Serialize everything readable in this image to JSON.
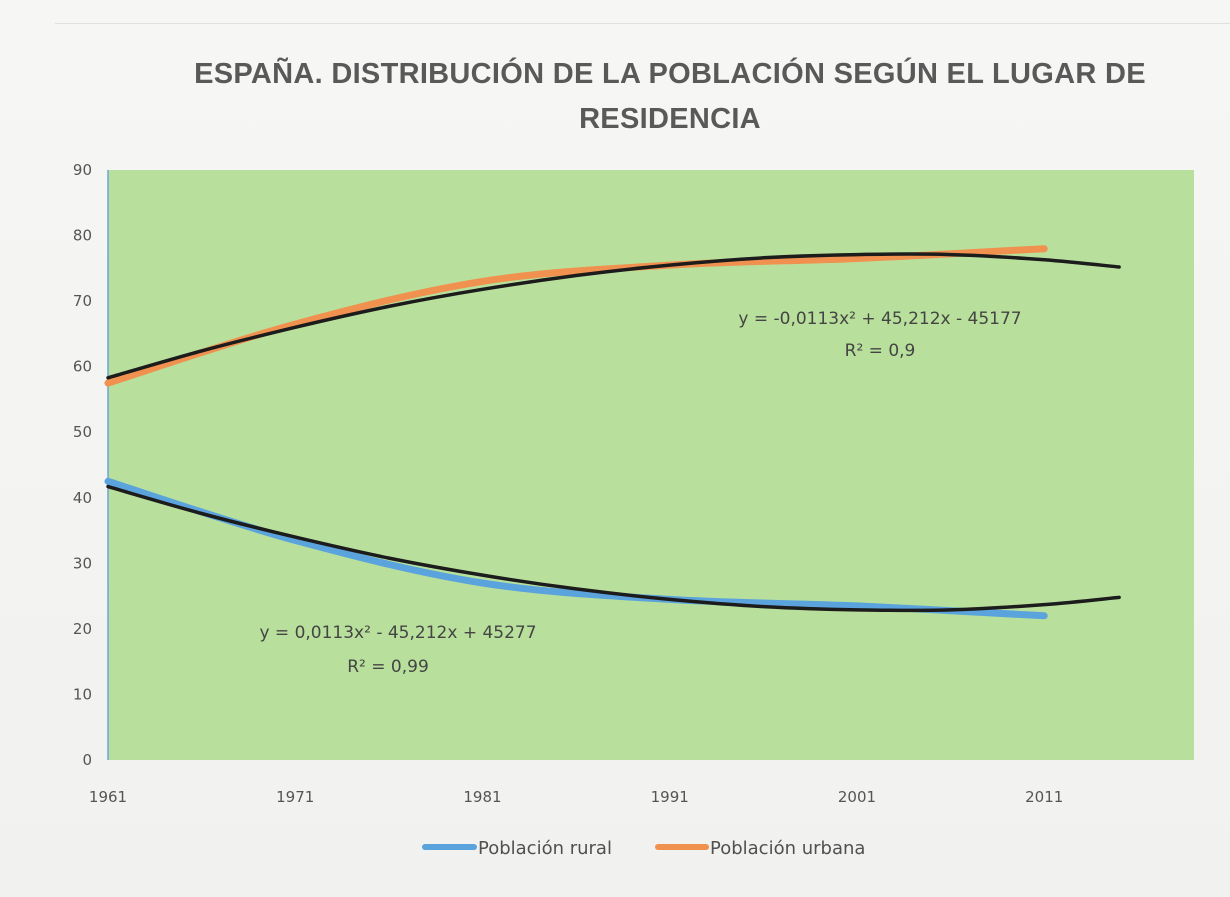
{
  "chart_data": {
    "type": "line",
    "title": "ESPAÑA. DISTRIBUCIÓN DE LA POBLACIÓN SEGÚN EL LUGAR DE RESIDENCIA",
    "x": [
      1961,
      1971,
      1981,
      1991,
      2001,
      2011
    ],
    "x_ticks": [
      "1961",
      "1971",
      "1981",
      "1991",
      "2001",
      "2011"
    ],
    "xlim": [
      1961,
      2019
    ],
    "ylim": [
      0,
      90
    ],
    "y_ticks": [
      "0",
      "10",
      "20",
      "30",
      "40",
      "50",
      "60",
      "70",
      "80",
      "90"
    ],
    "plot_background": "#b8e09c",
    "grid": false,
    "legend_position": "bottom",
    "series": [
      {
        "name": "Población rural",
        "color": "#5ba3dc",
        "values": [
          42.5,
          33.5,
          27,
          24.5,
          23.5,
          22
        ]
      },
      {
        "name": "Población urbana",
        "color": "#f0914f",
        "values": [
          57.5,
          66.5,
          73,
          75.5,
          76.5,
          78
        ]
      }
    ],
    "trendlines": [
      {
        "series": "Población urbana",
        "type": "polynomial",
        "order": 2,
        "color": "#1c1c1c",
        "x_end": 2015,
        "points": [
          [
            1961,
            58.3
          ],
          [
            1966,
            62.4
          ],
          [
            1971,
            66.0
          ],
          [
            1976,
            69.2
          ],
          [
            1981,
            71.8
          ],
          [
            1986,
            73.9
          ],
          [
            1991,
            75.5
          ],
          [
            1996,
            76.6
          ],
          [
            2001,
            77.1
          ],
          [
            2006,
            77.1
          ],
          [
            2011,
            76.3
          ],
          [
            2015,
            75.2
          ]
        ],
        "equation": "y = -0,0113x² + 45,212x - 45177",
        "r2": "R² = 0,9"
      },
      {
        "series": "Población rural",
        "type": "polynomial",
        "order": 2,
        "color": "#1c1c1c",
        "x_end": 2015,
        "points": [
          [
            1961,
            41.7
          ],
          [
            1966,
            37.6
          ],
          [
            1971,
            34.0
          ],
          [
            1976,
            30.8
          ],
          [
            1981,
            28.2
          ],
          [
            1986,
            26.1
          ],
          [
            1991,
            24.5
          ],
          [
            1996,
            23.4
          ],
          [
            2001,
            22.9
          ],
          [
            2006,
            22.9
          ],
          [
            2011,
            23.7
          ],
          [
            2015,
            24.8
          ]
        ],
        "equation": "y = 0,0113x² - 45,212x + 45277",
        "r2": "R² = 0,99"
      }
    ]
  }
}
